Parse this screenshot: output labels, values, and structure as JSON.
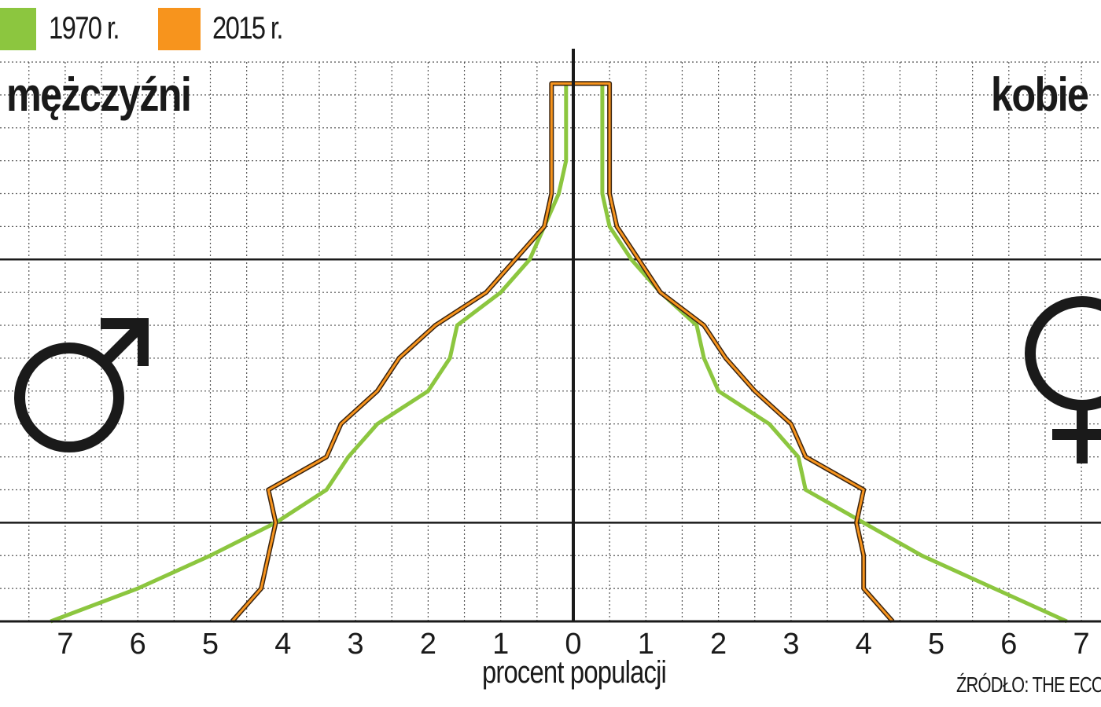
{
  "legend": {
    "items": [
      {
        "label": "1970 r.",
        "color": "#8cc63f"
      },
      {
        "label": "2015 r.",
        "color": "#f7941d"
      }
    ]
  },
  "labels": {
    "left": "mężczyźni",
    "right": "kobie",
    "source": "ŹRÓDŁO: THE ECON"
  },
  "icons": {
    "left": "male-symbol-icon",
    "right": "female-symbol-icon"
  },
  "chart_data": {
    "type": "line",
    "xlabel": "procent populacji",
    "ylabel": "",
    "x_ticks": [
      7,
      6,
      5,
      4,
      3,
      2,
      1,
      0,
      1,
      2,
      3,
      4,
      5,
      6,
      7
    ],
    "xlim": [
      -7.4,
      7.4
    ],
    "row_count": 17,
    "grid": true,
    "legend_position": "top-left",
    "series": [
      {
        "name": "1970 r.",
        "color": "#8cc63f",
        "male": [
          7.2,
          6.0,
          5.0,
          4.1,
          3.4,
          3.1,
          2.7,
          2.0,
          1.7,
          1.6,
          1.0,
          0.6,
          0.4,
          0.2,
          0.1,
          0.1,
          0.1
        ],
        "female": [
          6.8,
          5.8,
          4.8,
          4.0,
          3.2,
          3.1,
          2.7,
          2.0,
          1.8,
          1.7,
          1.2,
          0.8,
          0.5,
          0.4,
          0.4,
          0.4,
          0.4
        ]
      },
      {
        "name": "2015 r.",
        "color": "#f7941d",
        "male": [
          4.7,
          4.3,
          4.2,
          4.1,
          4.2,
          3.4,
          3.2,
          2.7,
          2.4,
          1.9,
          1.2,
          0.8,
          0.4,
          0.3,
          0.3,
          0.3,
          0.3
        ],
        "female": [
          4.4,
          4.0,
          4.0,
          3.9,
          4.0,
          3.2,
          3.0,
          2.5,
          2.1,
          1.8,
          1.2,
          0.9,
          0.6,
          0.5,
          0.5,
          0.5,
          0.5
        ]
      }
    ]
  }
}
